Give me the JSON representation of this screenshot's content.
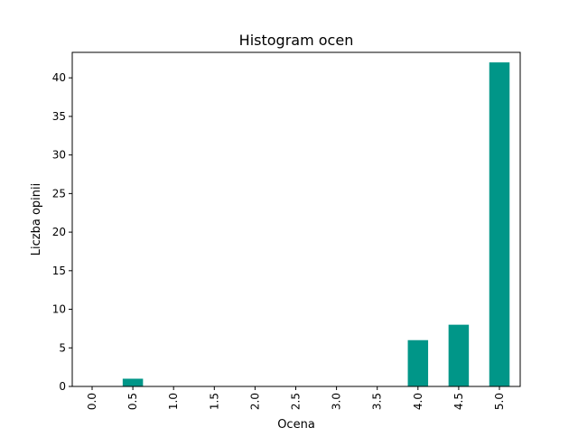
{
  "chart_data": {
    "type": "bar",
    "title": "Histogram ocen",
    "xlabel": "Ocena",
    "ylabel": "Liczba opinii",
    "categories": [
      "0.0",
      "0.5",
      "1.0",
      "1.5",
      "2.0",
      "2.5",
      "3.0",
      "3.5",
      "4.0",
      "4.5",
      "5.0"
    ],
    "values": [
      0,
      1,
      0,
      0,
      0,
      0,
      0,
      0,
      6,
      8,
      42
    ],
    "ylim": [
      0,
      43.3
    ],
    "yticks": [
      0,
      5,
      10,
      15,
      20,
      25,
      30,
      35,
      40
    ],
    "bar_color": "#009688",
    "grid": false,
    "legend": "none",
    "xtick_rotation": "vertical"
  }
}
